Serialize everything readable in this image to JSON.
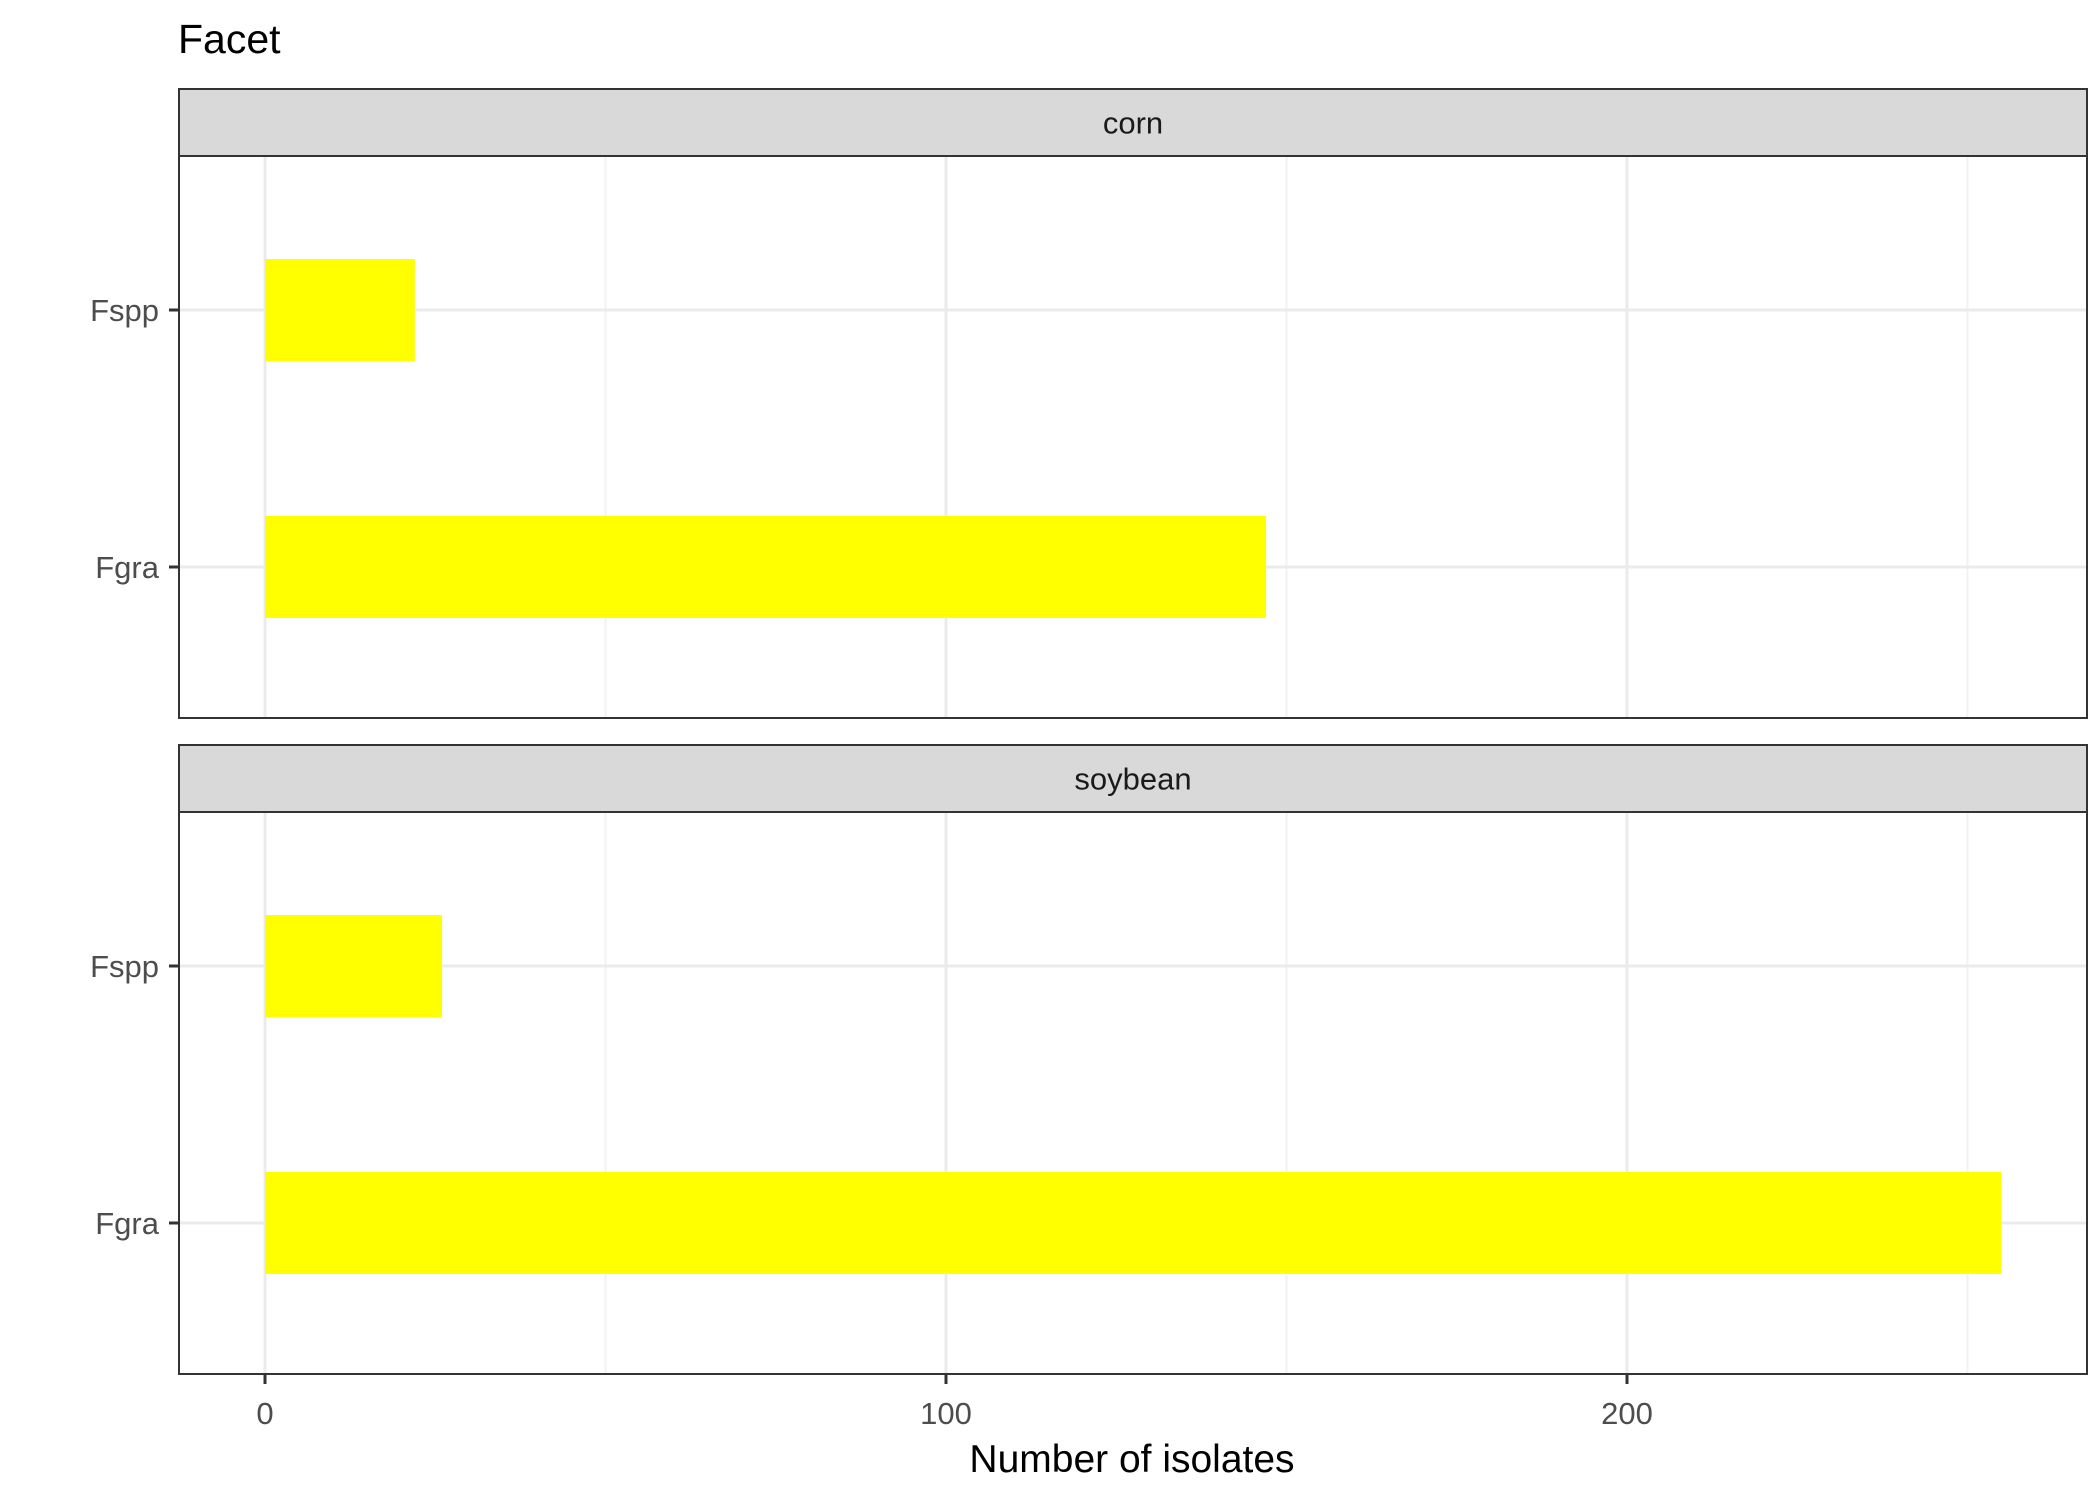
{
  "chart_data": {
    "type": "bar",
    "orientation": "horizontal",
    "title": "Facet",
    "xlabel": "Number of isolates",
    "ylabel": "",
    "xlim": [
      0,
      265
    ],
    "x_ticks": [
      0,
      100,
      200
    ],
    "x_minor_ticks": [
      50,
      150,
      250
    ],
    "categories": [
      "Fspp",
      "Fgra"
    ],
    "grid": "major and minor",
    "bar_color": "#FFFF00",
    "strip_color": "#D9D9D9",
    "facets": [
      {
        "label": "corn",
        "bars": [
          {
            "category": "Fspp",
            "value": 22
          },
          {
            "category": "Fgra",
            "value": 147
          }
        ]
      },
      {
        "label": "soybean",
        "bars": [
          {
            "category": "Fspp",
            "value": 26
          },
          {
            "category": "Fgra",
            "value": 255
          }
        ]
      }
    ]
  }
}
